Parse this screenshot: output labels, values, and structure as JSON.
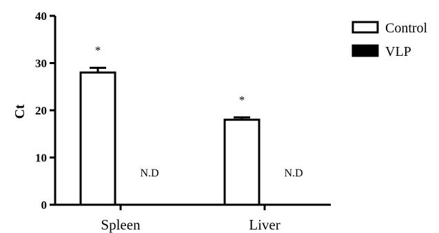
{
  "chart_data": {
    "type": "bar",
    "categories": [
      "Spleen",
      "Liver"
    ],
    "ylabel": "Ct",
    "ylim": [
      0,
      40
    ],
    "yticks": [
      0,
      10,
      20,
      30,
      40
    ],
    "series": [
      {
        "name": "Control",
        "fill": "#ffffff",
        "values": [
          28,
          18
        ],
        "errors": [
          1.0,
          0.5
        ],
        "annotations": [
          "*",
          "*"
        ]
      },
      {
        "name": "VLP",
        "fill": "#000000",
        "values": [
          null,
          null
        ],
        "value_labels": [
          "N.D",
          "N.D"
        ]
      }
    ],
    "legend_position": "top-right",
    "grid": false
  }
}
